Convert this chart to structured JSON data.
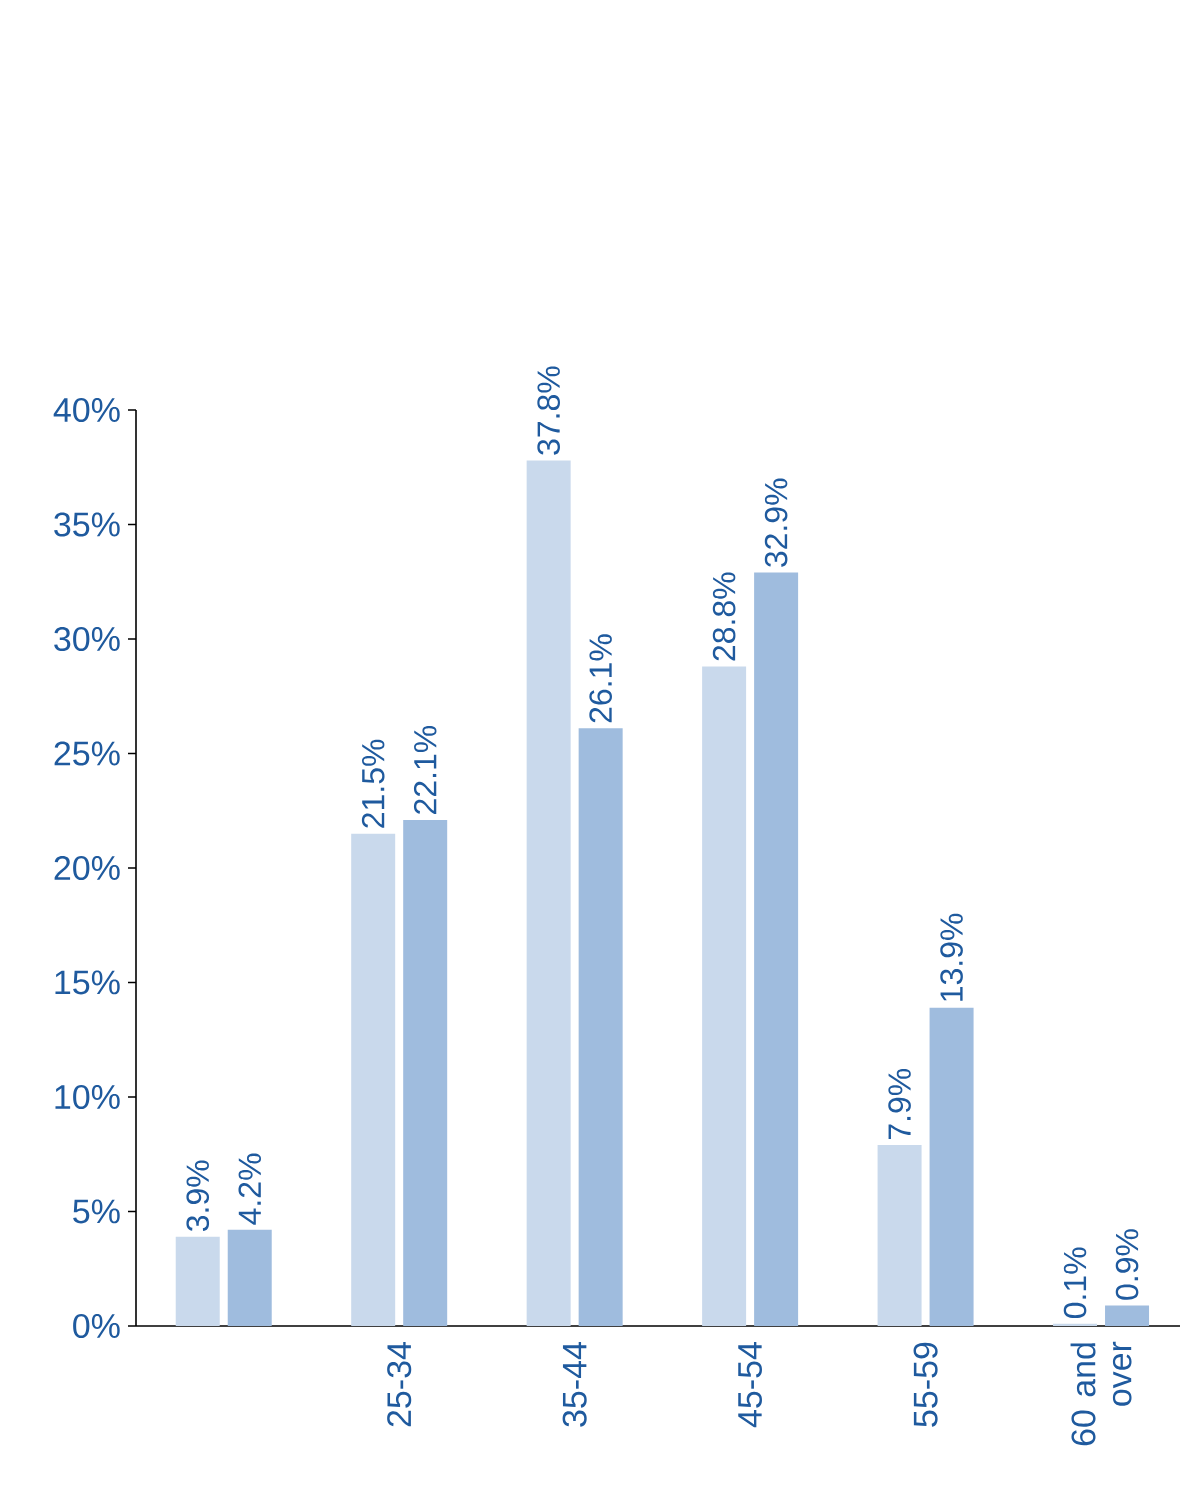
{
  "chart_data": {
    "type": "bar",
    "categories": [
      null,
      "25-34",
      "35-44",
      "45-54",
      "55-59",
      "60 and over"
    ],
    "series": [
      {
        "color": "#c9d9ec",
        "values": [
          3.9,
          21.5,
          37.8,
          28.8,
          7.9,
          0.1
        ],
        "value_labels": [
          "3.9%",
          "21.5%",
          "37.8%",
          "28.8%",
          "7.9%",
          "0.1%"
        ]
      },
      {
        "color": "#9fbcde",
        "values": [
          4.2,
          22.1,
          26.1,
          32.9,
          13.9,
          0.9
        ],
        "value_labels": [
          "4.2%",
          "22.1%",
          "26.1%",
          "32.9%",
          "13.9%",
          "0.9%"
        ]
      }
    ],
    "ylim": [
      0,
      40
    ],
    "yticks": [
      {
        "value": 0,
        "label": "0%"
      },
      {
        "value": 5,
        "label": "5%"
      },
      {
        "value": 10,
        "label": "10%"
      },
      {
        "value": 15,
        "label": "15%"
      },
      {
        "value": 20,
        "label": "20%"
      },
      {
        "value": 25,
        "label": "25%"
      },
      {
        "value": 30,
        "label": "30%"
      },
      {
        "value": 35,
        "label": "35%"
      },
      {
        "value": 40,
        "label": "40%"
      }
    ]
  }
}
